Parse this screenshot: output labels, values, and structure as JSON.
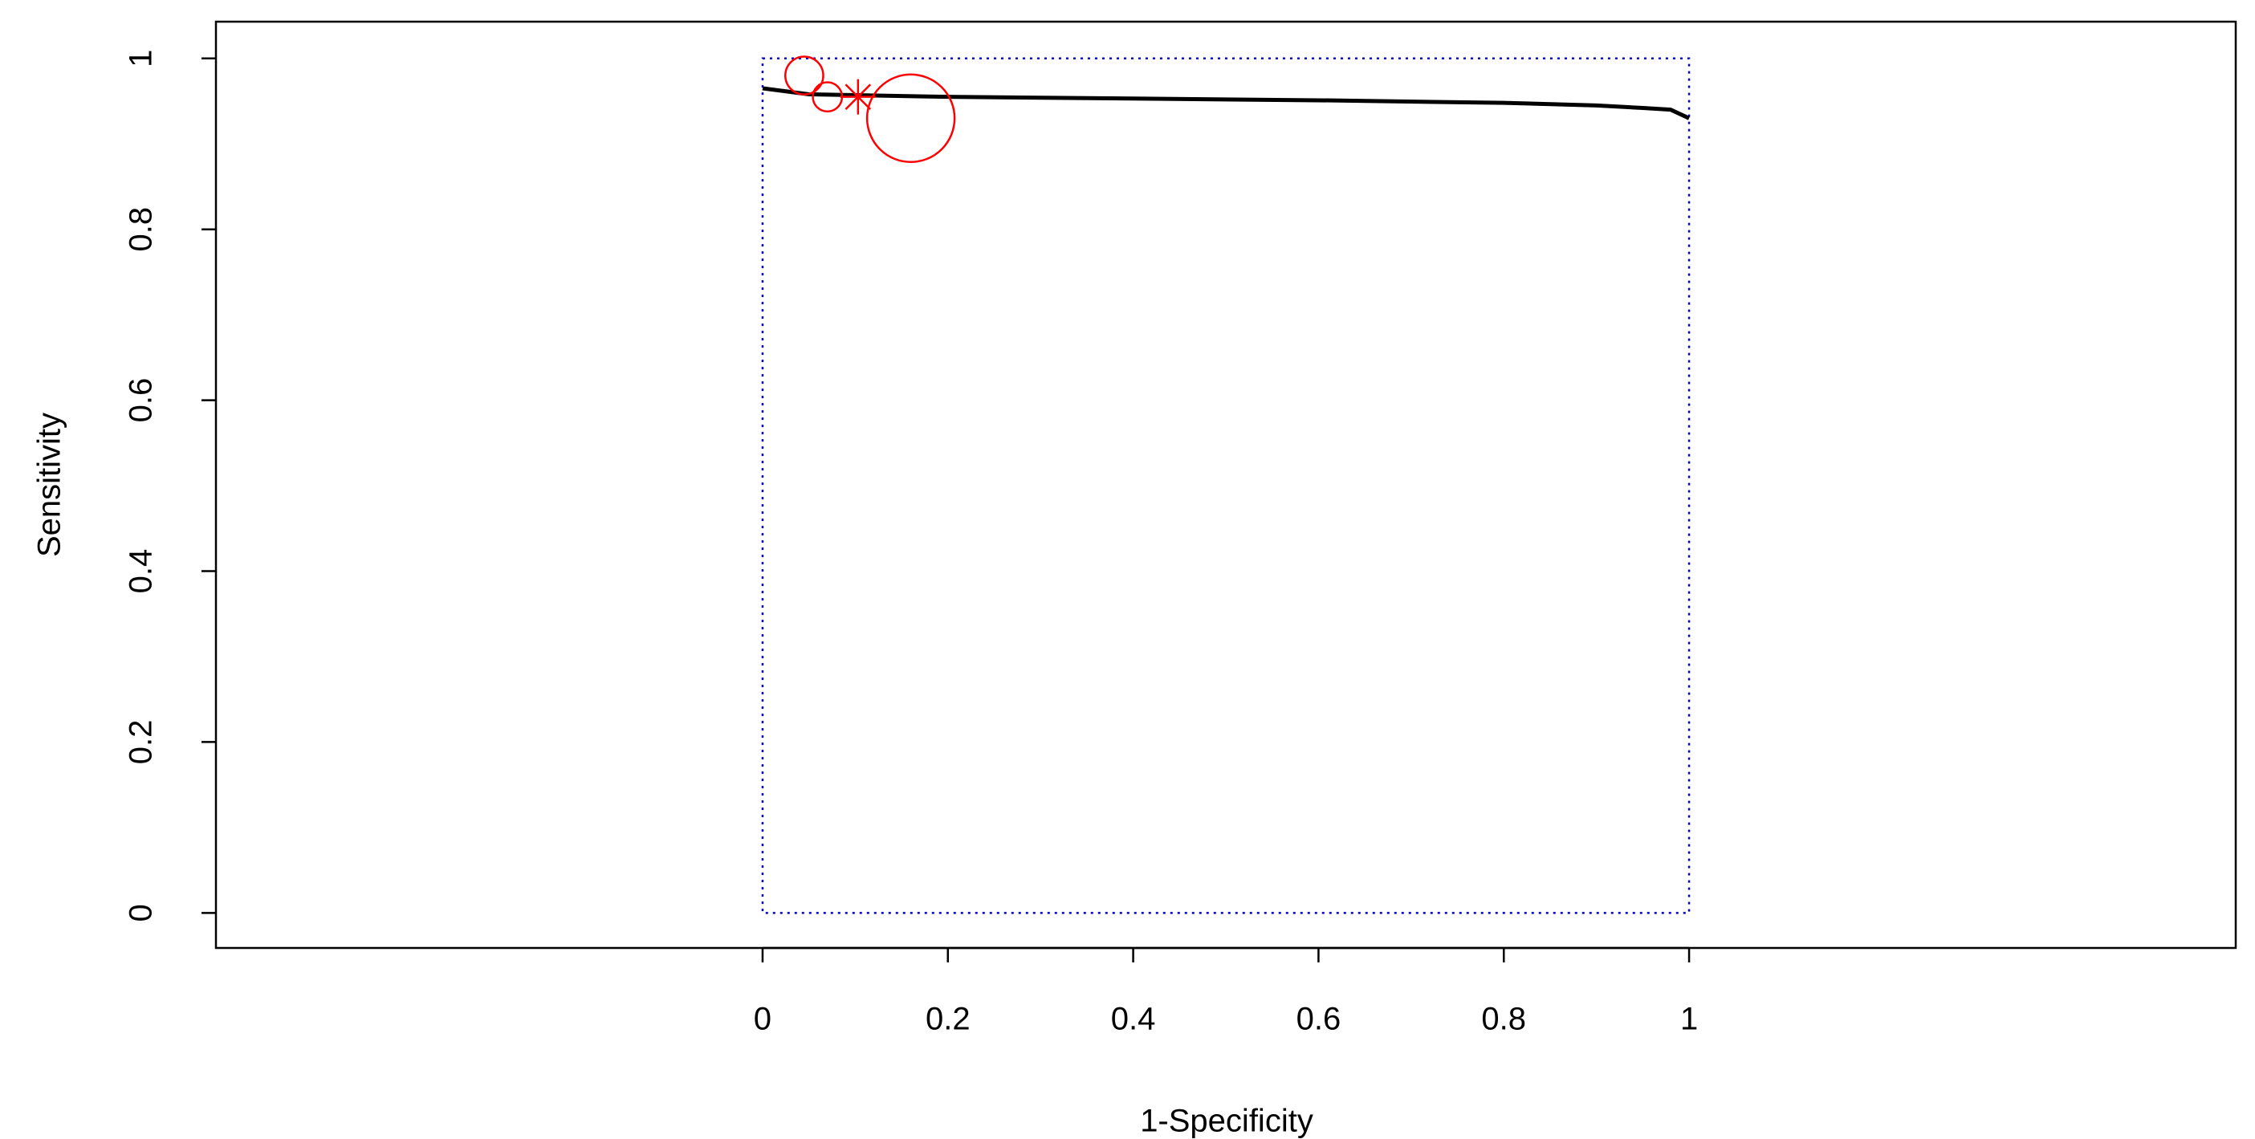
{
  "chart_data": {
    "type": "scatter",
    "xlabel": "1-Specificity",
    "ylabel": "Sensitivity",
    "xlim": [
      -0.59,
      1.59
    ],
    "ylim": [
      -0.041,
      1.043
    ],
    "xticks": [
      0,
      0.2,
      0.4,
      0.6,
      0.8,
      1
    ],
    "yticks": [
      0,
      0.2,
      0.4,
      0.6,
      0.8,
      1
    ],
    "curve": {
      "x": [
        0,
        0.05,
        0.2,
        0.4,
        0.6,
        0.8,
        0.9,
        0.95,
        0.98,
        1
      ],
      "values": [
        0.965,
        0.958,
        0.955,
        0.953,
        0.951,
        0.948,
        0.945,
        0.942,
        0.94,
        0.93
      ],
      "color": "#000000"
    },
    "points": {
      "x": [
        0.045,
        0.07,
        0.16
      ],
      "values": [
        0.98,
        0.955,
        0.93
      ],
      "sizes": [
        13,
        10,
        30
      ],
      "color": "#ff0000"
    },
    "summary": {
      "x": [
        0.103
      ],
      "values": [
        0.955
      ],
      "color": "#ff0000"
    },
    "box": {
      "x": [
        0,
        1
      ],
      "values": [
        0,
        1
      ],
      "color": "#0000cc"
    }
  }
}
